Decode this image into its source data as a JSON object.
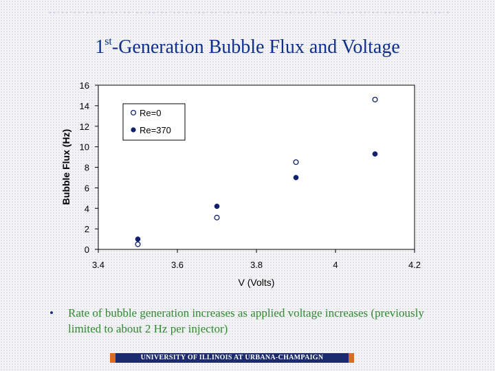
{
  "slide": {
    "title_prefix": "1",
    "title_sup": "st",
    "title_rest": "-Generation Bubble Flux and Voltage",
    "bullet_text": "Rate of bubble generation increases as applied voltage increases (previously limited to about 2 Hz per injector)",
    "footer": "UNIVERSITY OF ILLINOIS AT URBANA-CHAMPAIGN",
    "decoration": "∘∘◦∘∘◦∘∘◦∘∘◦∘∘◦∘∘◦∘∘◦∘∘◦∘∘◦∘∘◦∘∘◦∘∘◦∘∘◦∘∘◦∘∘◦∘∘◦∘∘◦∘∘◦∘∘◦∘∘◦∘∘◦∘∘◦∘∘◦∘∘◦∘∘◦∘∘◦∘∘◦∘∘◦∘∘◦∘∘◦∘∘◦∘∘◦∘∘◦∘∘◦"
  },
  "colors": {
    "title": "#0e2f8c",
    "bullet_text": "#2e8a2e",
    "marker": "#0e1f6e",
    "footer_bg": "#1c2a6e",
    "footer_accent": "#e06a1e"
  },
  "chart_data": {
    "type": "scatter",
    "title": "",
    "xlabel": "V (Volts)",
    "ylabel": "Bubble Flux (Hz)",
    "xlim": [
      3.4,
      4.2
    ],
    "ylim": [
      0,
      16
    ],
    "x_ticks": [
      "3.4",
      "3.6",
      "3.8",
      "4",
      "4.2"
    ],
    "y_ticks": [
      "0",
      "2",
      "4",
      "6",
      "8",
      "10",
      "12",
      "14",
      "16"
    ],
    "grid": false,
    "legend_position": "top-left",
    "series": [
      {
        "name": "Re=0",
        "marker": "open-circle",
        "x": [
          3.5,
          3.7,
          3.9,
          4.1
        ],
        "y": [
          0.5,
          3.1,
          8.5,
          14.6
        ]
      },
      {
        "name": "Re=370",
        "marker": "filled-circle",
        "x": [
          3.5,
          3.7,
          3.9,
          4.1
        ],
        "y": [
          1.0,
          4.2,
          7.0,
          9.3
        ]
      }
    ]
  }
}
